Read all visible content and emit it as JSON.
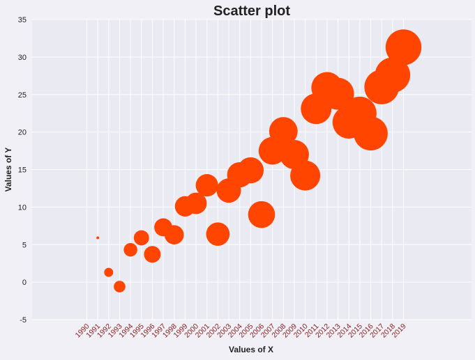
{
  "chart_data": {
    "type": "scatter",
    "title": "Scatter plot",
    "xlabel": "Values of X",
    "ylabel": "Values of Y",
    "ylim": [
      -5,
      35
    ],
    "yticks": [
      -5,
      0,
      5,
      10,
      15,
      20,
      25,
      30,
      35
    ],
    "grid": true,
    "xtick_labels": [
      "1990",
      "1991",
      "1992",
      "1993",
      "1994",
      "1995",
      "1996",
      "1997",
      "1998",
      "1999",
      "2000",
      "2001",
      "2002",
      "2003",
      "2004",
      "2005",
      "2006",
      "2007",
      "2008",
      "2009",
      "2010",
      "2011",
      "2012",
      "2013",
      "2014",
      "2015",
      "2016",
      "2017",
      "2018",
      "2019"
    ],
    "points": [
      {
        "x": 1990,
        "y": 5.9,
        "size": 0
      },
      {
        "x": 1991,
        "y": 1.3,
        "size": 1
      },
      {
        "x": 1992,
        "y": -0.6,
        "size": 2
      },
      {
        "x": 1993,
        "y": 4.3,
        "size": 3
      },
      {
        "x": 1994,
        "y": 5.9,
        "size": 4
      },
      {
        "x": 1995,
        "y": 3.7,
        "size": 5
      },
      {
        "x": 1996,
        "y": 7.3,
        "size": 6
      },
      {
        "x": 1997,
        "y": 6.3,
        "size": 7
      },
      {
        "x": 1998,
        "y": 10.1,
        "size": 8
      },
      {
        "x": 1999,
        "y": 10.5,
        "size": 9
      },
      {
        "x": 2000,
        "y": 12.9,
        "size": 10
      },
      {
        "x": 2001,
        "y": 6.4,
        "size": 11
      },
      {
        "x": 2002,
        "y": 12.2,
        "size": 12
      },
      {
        "x": 2003,
        "y": 14.3,
        "size": 13
      },
      {
        "x": 2004,
        "y": 14.9,
        "size": 14
      },
      {
        "x": 2005,
        "y": 9.0,
        "size": 15
      },
      {
        "x": 2006,
        "y": 17.5,
        "size": 16
      },
      {
        "x": 2007,
        "y": 20.1,
        "size": 17
      },
      {
        "x": 2008,
        "y": 17.0,
        "size": 18
      },
      {
        "x": 2009,
        "y": 14.2,
        "size": 19
      },
      {
        "x": 2010,
        "y": 23.1,
        "size": 20
      },
      {
        "x": 2011,
        "y": 25.9,
        "size": 21
      },
      {
        "x": 2012,
        "y": 25.1,
        "size": 22
      },
      {
        "x": 2013,
        "y": 21.3,
        "size": 23
      },
      {
        "x": 2014,
        "y": 22.5,
        "size": 24
      },
      {
        "x": 2015,
        "y": 19.8,
        "size": 25
      },
      {
        "x": 2016,
        "y": 26.0,
        "size": 26
      },
      {
        "x": 2017,
        "y": 27.6,
        "size": 27
      },
      {
        "x": 2018,
        "y": 31.3,
        "size": 28
      }
    ],
    "colors": {
      "marker": "#ff4500",
      "plot_bg": "#eaeaf2",
      "grid": "#ffffff",
      "xtick": "#8b1c1c"
    }
  }
}
